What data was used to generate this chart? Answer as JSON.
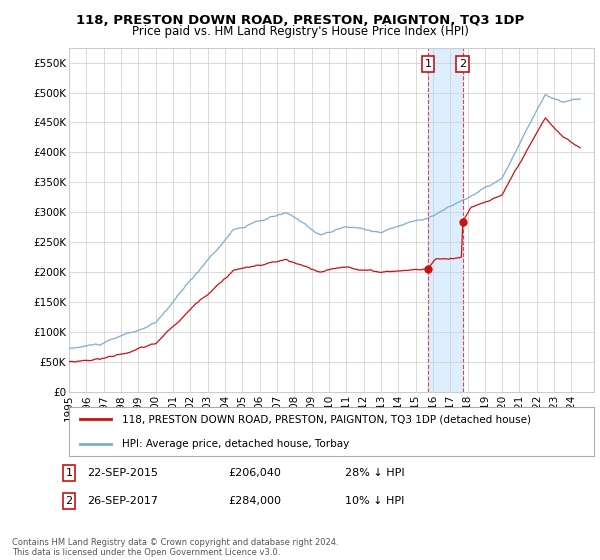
{
  "title": "118, PRESTON DOWN ROAD, PRESTON, PAIGNTON, TQ3 1DP",
  "subtitle": "Price paid vs. HM Land Registry's House Price Index (HPI)",
  "ylim": [
    0,
    575000
  ],
  "yticks": [
    0,
    50000,
    100000,
    150000,
    200000,
    250000,
    300000,
    350000,
    400000,
    450000,
    500000,
    550000
  ],
  "ytick_labels": [
    "£0",
    "£50K",
    "£100K",
    "£150K",
    "£200K",
    "£250K",
    "£300K",
    "£350K",
    "£400K",
    "£450K",
    "£500K",
    "£550K"
  ],
  "hpi_color": "#7bafd4",
  "price_color": "#cc1111",
  "highlight_color": "#ddeeff",
  "vline_color": "#dd4444",
  "transaction1_year": 2015.73,
  "transaction1_price": 206040,
  "transaction1_date": "22-SEP-2015",
  "transaction1_pct": "28% ↓ HPI",
  "transaction2_year": 2017.73,
  "transaction2_price": 284000,
  "transaction2_date": "26-SEP-2017",
  "transaction2_pct": "10% ↓ HPI",
  "legend_label1": "118, PRESTON DOWN ROAD, PRESTON, PAIGNTON, TQ3 1DP (detached house)",
  "legend_label2": "HPI: Average price, detached house, Torbay",
  "footnote": "Contains HM Land Registry data © Crown copyright and database right 2024.\nThis data is licensed under the Open Government Licence v3.0.",
  "background_color": "#ffffff",
  "grid_color": "#cccccc",
  "xstart": 1995,
  "xend": 2025
}
